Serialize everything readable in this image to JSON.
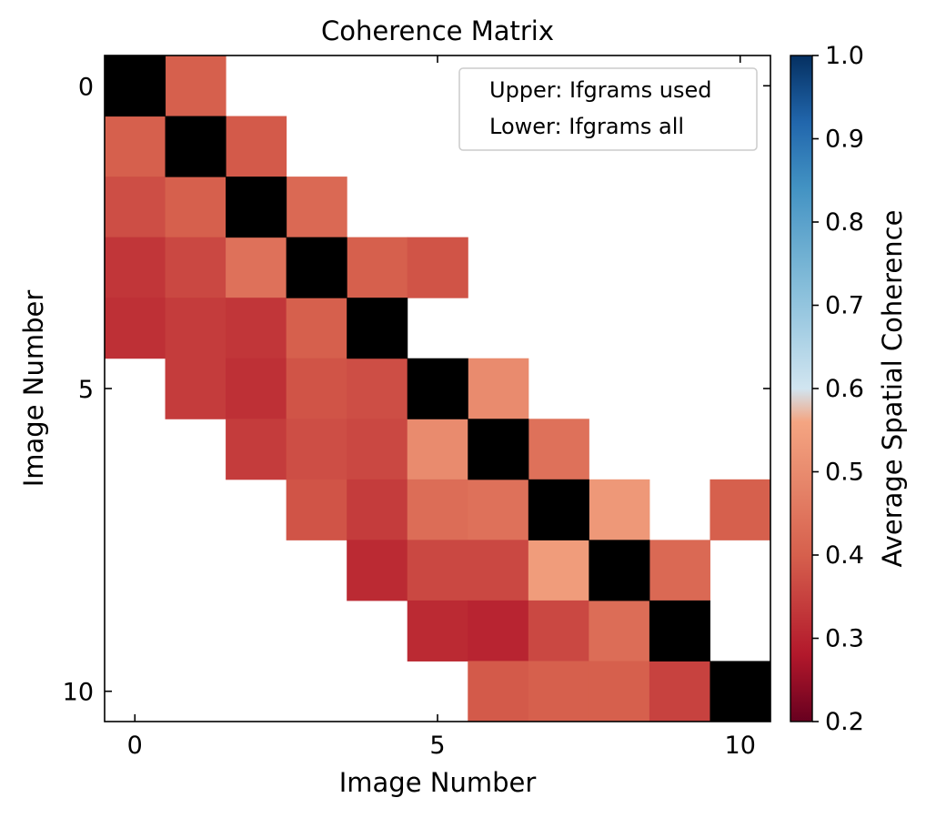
{
  "chart_data": {
    "type": "heatmap",
    "title": "Coherence Matrix",
    "xlabel": "Image Number",
    "ylabel": "Image Number",
    "n": 11,
    "x_ticks": [
      0,
      5,
      10
    ],
    "y_ticks": [
      0,
      5,
      10
    ],
    "legend": {
      "placement": "upper-right",
      "entries": [
        "Upper: Ifgrams used",
        "Lower: Ifgrams all"
      ]
    },
    "colorbar": {
      "label": "Average Spatial Coherence",
      "min": 0.2,
      "max": 1.0,
      "ticks": [
        0.2,
        0.3,
        0.4,
        0.5,
        0.6,
        0.7,
        0.8,
        0.9,
        1.0
      ],
      "colormap": "RdBu"
    },
    "diagonal_color": "#000000",
    "cells": [
      [
        0,
        1,
        0.4
      ],
      [
        1,
        0,
        0.4
      ],
      [
        1,
        2,
        0.39
      ],
      [
        2,
        0,
        0.37
      ],
      [
        2,
        1,
        0.4
      ],
      [
        2,
        3,
        0.42
      ],
      [
        3,
        0,
        0.33
      ],
      [
        3,
        1,
        0.36
      ],
      [
        3,
        2,
        0.44
      ],
      [
        3,
        4,
        0.4
      ],
      [
        3,
        5,
        0.38
      ],
      [
        4,
        0,
        0.32
      ],
      [
        4,
        1,
        0.34
      ],
      [
        4,
        2,
        0.33
      ],
      [
        4,
        3,
        0.4
      ],
      [
        5,
        1,
        0.34
      ],
      [
        5,
        2,
        0.32
      ],
      [
        5,
        3,
        0.38
      ],
      [
        5,
        4,
        0.37
      ],
      [
        5,
        6,
        0.5
      ],
      [
        6,
        2,
        0.34
      ],
      [
        6,
        3,
        0.37
      ],
      [
        6,
        4,
        0.36
      ],
      [
        6,
        5,
        0.5
      ],
      [
        6,
        7,
        0.44
      ],
      [
        7,
        3,
        0.38
      ],
      [
        7,
        4,
        0.34
      ],
      [
        7,
        5,
        0.43
      ],
      [
        7,
        6,
        0.44
      ],
      [
        7,
        8,
        0.53
      ],
      [
        7,
        10,
        0.4
      ],
      [
        8,
        4,
        0.31
      ],
      [
        8,
        5,
        0.36
      ],
      [
        8,
        6,
        0.36
      ],
      [
        8,
        7,
        0.54
      ],
      [
        8,
        9,
        0.42
      ],
      [
        9,
        5,
        0.31
      ],
      [
        9,
        6,
        0.3
      ],
      [
        9,
        7,
        0.36
      ],
      [
        9,
        8,
        0.43
      ],
      [
        10,
        6,
        0.39
      ],
      [
        10,
        7,
        0.4
      ],
      [
        10,
        8,
        0.4
      ],
      [
        10,
        9,
        0.35
      ]
    ]
  }
}
